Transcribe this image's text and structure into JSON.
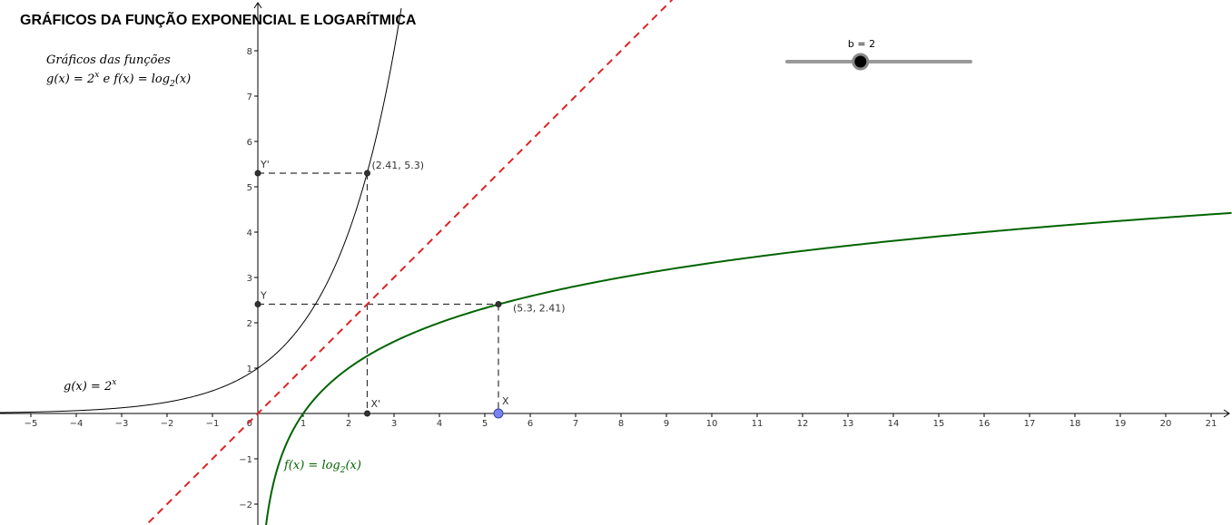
{
  "title": "GRÁFICOS DA FUNÇÃO EXPONENCIAL E LOGARÍTMICA",
  "description": {
    "line1": "Gráficos das funções",
    "line2_g": "g(x) = 2",
    "line2_sup": "x",
    "line2_mid": " e f(x) = log",
    "line2_sub": "2",
    "line2_end": "(x)"
  },
  "slider": {
    "label": "b = 2",
    "min": 0,
    "max": 5,
    "value": 2
  },
  "curve_labels": {
    "g_label": "g(x)  =  2",
    "g_sup": "x",
    "f_label": "f(x)  =  log",
    "f_sub": "2",
    "f_end": "(x)"
  },
  "points": {
    "P1": {
      "label": "(2.41, 5.3)",
      "x": 2.41,
      "y": 5.3
    },
    "P2": {
      "label": "(5.3, 2.41)",
      "x": 5.3,
      "y": 2.41
    },
    "X": {
      "label": "X",
      "x": 5.3,
      "y": 0
    },
    "Xp": {
      "label": "X'",
      "x": 2.41,
      "y": 0
    },
    "Y": {
      "label": "Y",
      "x": 0,
      "y": 2.41
    },
    "Yp": {
      "label": "Y'",
      "x": 0,
      "y": 5.3
    }
  },
  "colors": {
    "exp_curve": "#000000",
    "log_curve": "#006400",
    "identity_line": "#dd2222",
    "point_X": "#7b83f0",
    "axes": "#000000",
    "dashes": "#333333"
  },
  "chart_data": {
    "type": "line",
    "title": "",
    "xlabel": "",
    "ylabel": "",
    "xlim": [
      -5.7,
      21.4
    ],
    "ylim": [
      -2.45,
      8.75
    ],
    "x_ticks": [
      -5,
      -4,
      -3,
      -2,
      -1,
      1,
      2,
      3,
      4,
      5,
      6,
      7,
      8,
      9,
      10,
      11,
      12,
      13,
      14,
      15,
      16,
      17,
      18,
      19,
      20,
      21
    ],
    "y_ticks": [
      -2,
      -1,
      1,
      2,
      3,
      4,
      5,
      6,
      7,
      8
    ],
    "origin_label": "0",
    "grid": false,
    "series": [
      {
        "name": "g(x) = 2^x",
        "formula": "2^x",
        "color": "#000000",
        "style": "solid"
      },
      {
        "name": "f(x) = log_2(x)",
        "formula": "log2(x)",
        "color": "#006400",
        "style": "solid"
      },
      {
        "formula": "y = x",
        "color": "#dd2222",
        "style": "dashed"
      }
    ]
  }
}
